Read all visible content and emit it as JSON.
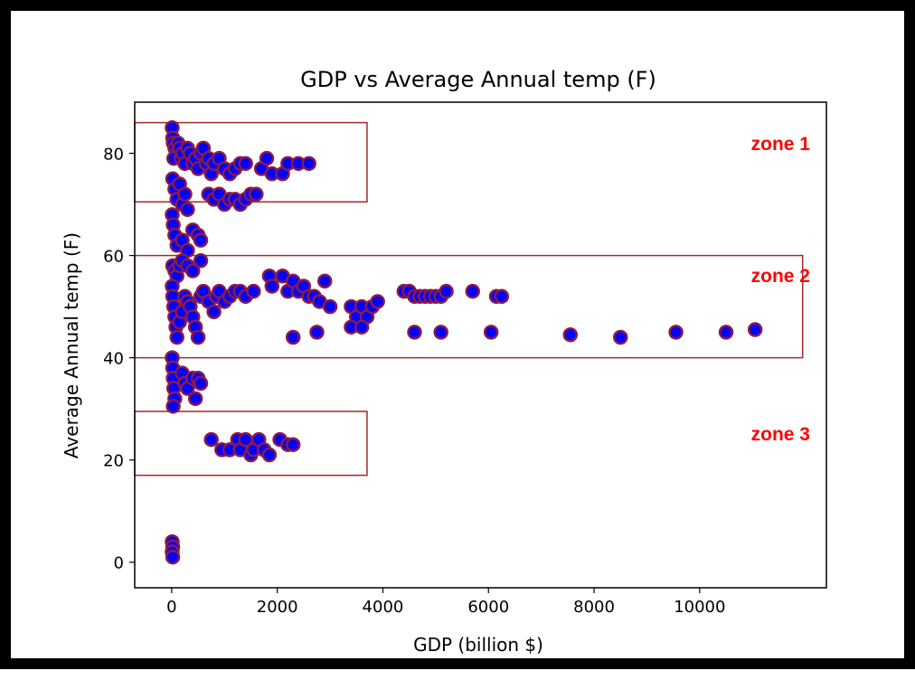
{
  "chart_data": {
    "type": "scatter",
    "title": "GDP vs Average Annual temp (F)",
    "xlabel": "GDP (billion $)",
    "ylabel": "Average Annual temp (F)",
    "xlim": [
      -700,
      12400
    ],
    "ylim": [
      -5,
      90
    ],
    "xticks": [
      0,
      2000,
      4000,
      6000,
      8000,
      10000
    ],
    "yticks": [
      0,
      20,
      40,
      60,
      80
    ],
    "grid": false,
    "marker_fill": "#0000ff",
    "marker_edge": "#8b1a4a",
    "points": [
      [
        10,
        85
      ],
      [
        20,
        83
      ],
      [
        30,
        82
      ],
      [
        60,
        81
      ],
      [
        90,
        80
      ],
      [
        40,
        79
      ],
      [
        120,
        82
      ],
      [
        150,
        81
      ],
      [
        180,
        79
      ],
      [
        210,
        80
      ],
      [
        250,
        78
      ],
      [
        300,
        81
      ],
      [
        350,
        80
      ],
      [
        400,
        78
      ],
      [
        450,
        79
      ],
      [
        500,
        77
      ],
      [
        550,
        80
      ],
      [
        600,
        81
      ],
      [
        650,
        78
      ],
      [
        700,
        79
      ],
      [
        750,
        76
      ],
      [
        800,
        78
      ],
      [
        900,
        79
      ],
      [
        1000,
        77
      ],
      [
        1100,
        76
      ],
      [
        1200,
        77
      ],
      [
        1300,
        78
      ],
      [
        1400,
        78
      ],
      [
        1700,
        77
      ],
      [
        1800,
        79
      ],
      [
        1900,
        76
      ],
      [
        2100,
        76
      ],
      [
        2200,
        78
      ],
      [
        2400,
        78
      ],
      [
        2600,
        78
      ],
      [
        20,
        75
      ],
      [
        60,
        73
      ],
      [
        100,
        71
      ],
      [
        150,
        74
      ],
      [
        200,
        70
      ],
      [
        250,
        72
      ],
      [
        300,
        69
      ],
      [
        700,
        72
      ],
      [
        800,
        71
      ],
      [
        900,
        72
      ],
      [
        1000,
        70
      ],
      [
        1100,
        71
      ],
      [
        1200,
        71
      ],
      [
        1300,
        70
      ],
      [
        1400,
        71
      ],
      [
        1500,
        72
      ],
      [
        1600,
        72
      ],
      [
        10,
        68
      ],
      [
        30,
        66
      ],
      [
        60,
        64
      ],
      [
        100,
        62
      ],
      [
        200,
        63
      ],
      [
        300,
        61
      ],
      [
        400,
        65
      ],
      [
        500,
        64
      ],
      [
        550,
        63
      ],
      [
        20,
        58
      ],
      [
        60,
        57
      ],
      [
        100,
        56
      ],
      [
        150,
        58
      ],
      [
        200,
        59
      ],
      [
        300,
        58
      ],
      [
        400,
        57
      ],
      [
        550,
        59
      ],
      [
        10,
        54
      ],
      [
        20,
        52
      ],
      [
        40,
        50
      ],
      [
        60,
        48
      ],
      [
        80,
        46
      ],
      [
        100,
        44
      ],
      [
        150,
        47
      ],
      [
        200,
        49
      ],
      [
        250,
        52
      ],
      [
        300,
        51
      ],
      [
        350,
        50
      ],
      [
        400,
        48
      ],
      [
        450,
        46
      ],
      [
        500,
        44
      ],
      [
        550,
        52
      ],
      [
        600,
        53
      ],
      [
        700,
        51
      ],
      [
        800,
        49
      ],
      [
        850,
        52
      ],
      [
        900,
        53
      ],
      [
        1000,
        51
      ],
      [
        1100,
        52
      ],
      [
        1200,
        53
      ],
      [
        1300,
        53
      ],
      [
        1400,
        52
      ],
      [
        1550,
        53
      ],
      [
        1850,
        56
      ],
      [
        1900,
        54
      ],
      [
        2100,
        56
      ],
      [
        2200,
        53
      ],
      [
        2300,
        55
      ],
      [
        2400,
        53
      ],
      [
        2500,
        54
      ],
      [
        2600,
        52
      ],
      [
        2700,
        52
      ],
      [
        2800,
        51
      ],
      [
        2900,
        55
      ],
      [
        3000,
        50
      ],
      [
        3400,
        50
      ],
      [
        3500,
        48
      ],
      [
        3600,
        50
      ],
      [
        3700,
        48
      ],
      [
        3800,
        50
      ],
      [
        3900,
        51
      ],
      [
        4400,
        53
      ],
      [
        4500,
        53
      ],
      [
        4600,
        52
      ],
      [
        4700,
        52
      ],
      [
        4800,
        52
      ],
      [
        4900,
        52
      ],
      [
        5000,
        52
      ],
      [
        5100,
        52
      ],
      [
        5200,
        53
      ],
      [
        5700,
        53
      ],
      [
        6150,
        52
      ],
      [
        6250,
        52
      ],
      [
        3400,
        46
      ],
      [
        3600,
        46
      ],
      [
        2300,
        44
      ],
      [
        2750,
        45
      ],
      [
        4600,
        45
      ],
      [
        5100,
        45
      ],
      [
        6050,
        45
      ],
      [
        7550,
        44.5
      ],
      [
        8500,
        44
      ],
      [
        9550,
        45
      ],
      [
        10500,
        45
      ],
      [
        11050,
        45.5
      ],
      [
        10,
        40
      ],
      [
        20,
        38
      ],
      [
        30,
        36
      ],
      [
        40,
        34
      ],
      [
        60,
        32
      ],
      [
        30,
        30.5
      ],
      [
        200,
        37
      ],
      [
        250,
        35
      ],
      [
        300,
        34
      ],
      [
        400,
        36
      ],
      [
        450,
        32
      ],
      [
        500,
        36
      ],
      [
        550,
        35
      ],
      [
        750,
        24
      ],
      [
        950,
        22
      ],
      [
        1100,
        22
      ],
      [
        1250,
        24
      ],
      [
        1300,
        22
      ],
      [
        1400,
        24
      ],
      [
        1500,
        21
      ],
      [
        1550,
        22
      ],
      [
        1650,
        24
      ],
      [
        1750,
        22
      ],
      [
        1850,
        21
      ],
      [
        2050,
        24
      ],
      [
        2200,
        23
      ],
      [
        2300,
        23
      ],
      [
        10,
        4
      ],
      [
        20,
        3
      ],
      [
        10,
        2
      ],
      [
        20,
        1
      ]
    ]
  },
  "zones": [
    {
      "label": "zone 1",
      "x_range": [
        -700,
        3700
      ],
      "y_range": [
        70.5,
        86
      ]
    },
    {
      "label": "zone 2",
      "x_range": [
        -700,
        11950
      ],
      "y_range": [
        40,
        60
      ]
    },
    {
      "label": "zone 3",
      "x_range": [
        -700,
        3700
      ],
      "y_range": [
        17,
        29.5
      ]
    }
  ],
  "zone_color": "#a52a2a",
  "zone_label_color": "#ff0000"
}
